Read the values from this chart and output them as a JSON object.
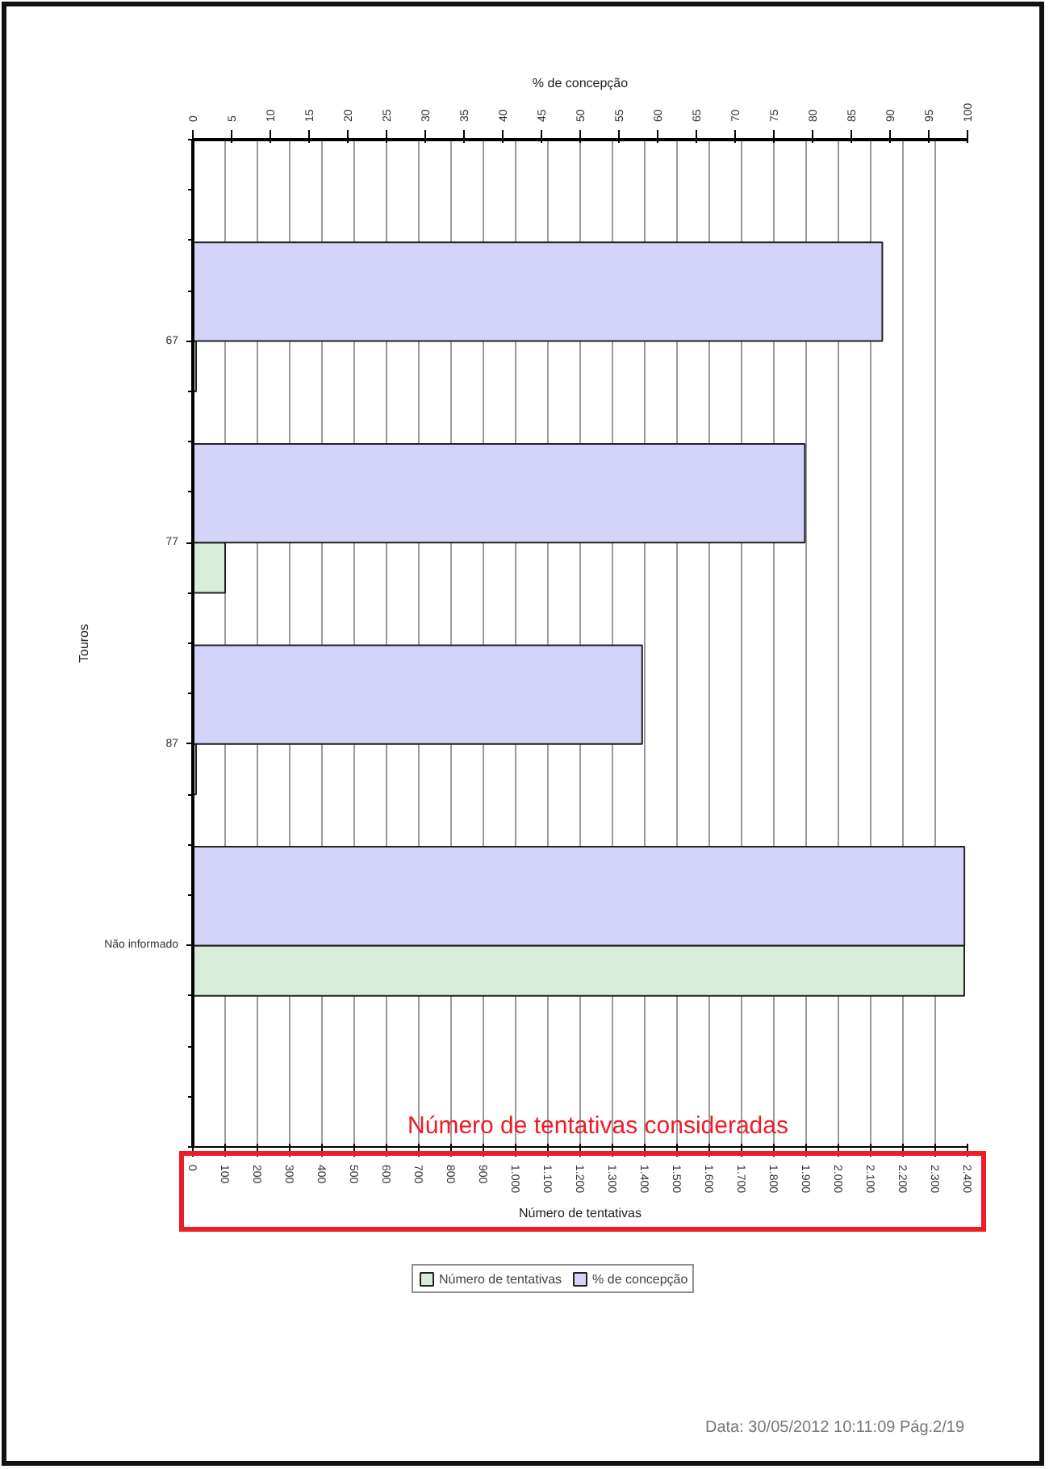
{
  "chart_data": {
    "type": "bar",
    "orientation": "horizontal",
    "categories": [
      "67",
      "77",
      "87",
      "Não informado"
    ],
    "xlabel": "Número de tentativas",
    "x2label": "% de concepção",
    "ylabel": "Touros",
    "xlim": [
      0,
      2400
    ],
    "xticks": [
      0,
      100,
      200,
      300,
      400,
      500,
      600,
      700,
      800,
      900,
      {
        "value": 1000,
        "label": "1.000"
      },
      {
        "value": 1100,
        "label": "1.100"
      },
      {
        "value": 1200,
        "label": "1.200"
      },
      {
        "value": 1300,
        "label": "1.300"
      },
      {
        "value": 1400,
        "label": "1.400"
      },
      {
        "value": 1500,
        "label": "1.500"
      },
      {
        "value": 1600,
        "label": "1.600"
      },
      {
        "value": 1700,
        "label": "1.700"
      },
      {
        "value": 1800,
        "label": "1.800"
      },
      {
        "value": 1900,
        "label": "1.900"
      },
      {
        "value": 2000,
        "label": "2.000"
      },
      {
        "value": 2100,
        "label": "2.100"
      },
      {
        "value": 2200,
        "label": "2.200"
      },
      {
        "value": 2300,
        "label": "2.300"
      },
      {
        "value": 2400,
        "label": "2.400"
      }
    ],
    "x2lim": [
      0,
      100
    ],
    "x2ticks": [
      0,
      5,
      10,
      15,
      20,
      25,
      30,
      35,
      40,
      45,
      50,
      55,
      60,
      65,
      70,
      75,
      80,
      85,
      90,
      95,
      100
    ],
    "series": [
      {
        "name": "Número de tentativas",
        "color": "#d9ecd9",
        "values": [
          10,
          100,
          10,
          2390
        ]
      },
      {
        "name": "% de concepção",
        "color": "#d4d4fb",
        "axis": "x2",
        "values": [
          89,
          79,
          58,
          99.6
        ]
      }
    ],
    "grid": "x",
    "legend": "bottom",
    "annotations": [
      "Número de tentativas consideradas",
      "Data: 30/05/2012 10:11:09 Pág.2/19"
    ]
  }
}
